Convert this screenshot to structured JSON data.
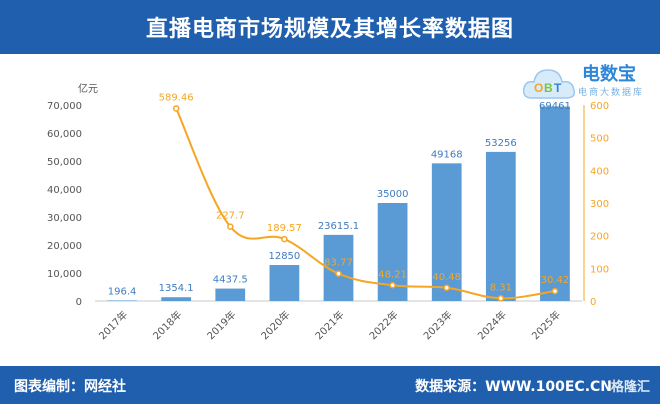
{
  "header": {
    "title": "直播电商市场规模及其增长率数据图"
  },
  "footer": {
    "editor": "图表编制：网经社",
    "source": "数据来源：WWW.100EC.CN",
    "watermark": "格隆汇"
  },
  "logo": {
    "brand": "电数宝",
    "sub": "电商大数据库"
  },
  "chart_data": {
    "type": "bar",
    "categories": [
      "2017年",
      "2018年",
      "2019年",
      "2020年",
      "2021年",
      "2022年",
      "2023年",
      "2024年",
      "2025年"
    ],
    "series": [
      {
        "type": "bar",
        "axis": "left",
        "values": [
          196.4,
          1354.1,
          4437.5,
          12850,
          23615.1,
          35000,
          49168,
          53256,
          69461
        ],
        "labels": [
          "196.4",
          "1354.1",
          "4437.5",
          "12850",
          "23615.1",
          "35000",
          "49168",
          "53256",
          "69461"
        ]
      },
      {
        "type": "line",
        "axis": "right",
        "values": [
          null,
          589.46,
          227.7,
          189.57,
          83.77,
          48.21,
          40.48,
          8.31,
          30.42
        ],
        "labels": [
          "",
          "589.46",
          "227.7",
          "189.57",
          "83.77",
          "48.21",
          "40.48",
          "8.31",
          "30.42"
        ]
      }
    ],
    "ylabel": "亿元",
    "ylim": [
      0,
      70000
    ],
    "yticks": [
      "0",
      "10,000",
      "20,000",
      "30,000",
      "40,000",
      "50,000",
      "60,000",
      "70,000"
    ],
    "y2lim": [
      0,
      600
    ],
    "y2ticks": [
      "0",
      "100",
      "200",
      "300",
      "400",
      "500",
      "600"
    ],
    "colors": {
      "bar": "#5b9bd5",
      "bar_label": "#3e7cc0",
      "line": "#f5a623",
      "line_label": "#f5a623",
      "axis_text": "#555555"
    }
  }
}
